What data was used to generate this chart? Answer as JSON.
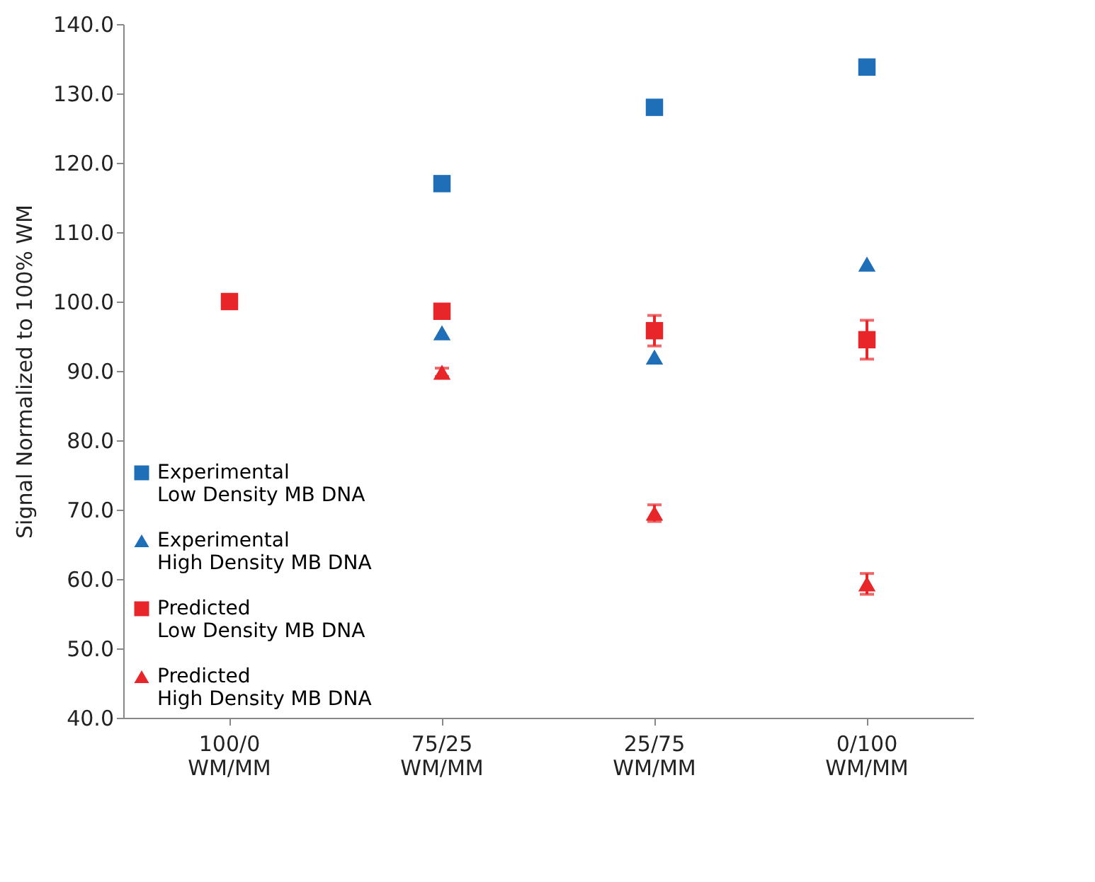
{
  "chart_data": {
    "type": "scatter",
    "ylabel": "Signal Normalized to 100% WM",
    "categories": [
      "100/0\nWM/MM",
      "75/25\nWM/MM",
      "25/75\nWM/MM",
      "0/100\nWM/MM"
    ],
    "series": [
      {
        "name": "Experimental\n      Low Density MB DNA",
        "color": "#1f6fb8",
        "marker": "square",
        "values": [
          null,
          117.0,
          128.0,
          133.8
        ]
      },
      {
        "name": "Experimental\n      High Density MB DNA",
        "color": "#1f6fb8",
        "marker": "triangle",
        "values": [
          null,
          95.5,
          92.0,
          105.4
        ]
      },
      {
        "name": "Predicted\n      Low Density MB DNA",
        "color": "#e8262a",
        "marker": "square",
        "values": [
          100.0,
          98.6,
          95.8,
          94.5
        ],
        "errors": [
          null,
          null,
          2.2,
          2.8
        ]
      },
      {
        "name": "Predicted\n      High Density MB DNA",
        "color": "#e8262a",
        "marker": "triangle",
        "values": [
          null,
          89.8,
          69.5,
          59.3
        ],
        "errors": [
          null,
          0.6,
          1.2,
          1.5
        ]
      }
    ],
    "ylim": [
      40,
      140
    ],
    "yticks": [
      {
        "value": 40,
        "label": "40.0"
      },
      {
        "value": 50,
        "label": "50.0"
      },
      {
        "value": 60,
        "label": "60.0"
      },
      {
        "value": 70,
        "label": "70.0"
      },
      {
        "value": 80,
        "label": "80.0"
      },
      {
        "value": 90,
        "label": "90.0"
      },
      {
        "value": 100,
        "label": "100.0"
      },
      {
        "value": 110,
        "label": "110.0"
      },
      {
        "value": 120,
        "label": "120.0"
      },
      {
        "value": 130,
        "label": "130.0"
      },
      {
        "value": 140,
        "label": "140.0"
      }
    ],
    "grid": false,
    "legend": "bottom left"
  }
}
